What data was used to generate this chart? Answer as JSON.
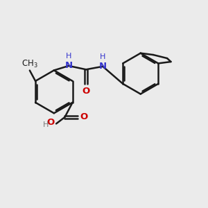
{
  "background_color": "#ebebeb",
  "bond_color": "#1a1a1a",
  "bond_width": 1.8,
  "N_color": "#3333cc",
  "O_color": "#cc0000",
  "H_color": "#777777",
  "font_size": 8.5,
  "figsize": [
    3.0,
    3.0
  ],
  "dpi": 100,
  "xlim": [
    0,
    10
  ],
  "ylim": [
    0,
    10
  ]
}
